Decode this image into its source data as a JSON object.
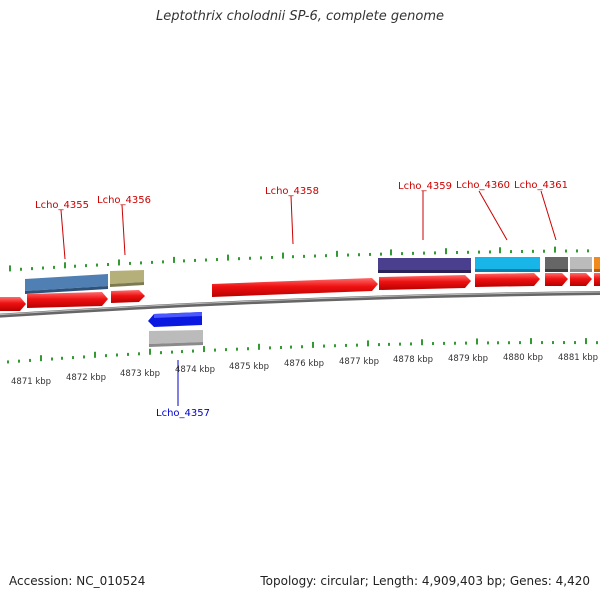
{
  "title": "Leptothrix cholodnii SP-6, complete genome",
  "footer": {
    "accession": "Accession: NC_010524",
    "summary": "Topology: circular; Length: 4,909,403 bp; Genes: 4,420"
  },
  "colors": {
    "cds": "#ee1111",
    "backbone": "#888888",
    "tick": "#339933",
    "label_plus": "#cc0000",
    "label_minus": "#0000cc",
    "feature_colors": [
      "#4f7fb3",
      "#b5b07a",
      "#4a3f8f",
      "#18b6e8",
      "#666666",
      "#bbbbbb",
      "#f08a1c",
      "#0a18e0"
    ]
  },
  "kbp_ticks": [
    "4871 kbp",
    "4872 kbp",
    "4873 kbp",
    "4874 kbp",
    "4875 kbp",
    "4876 kbp",
    "4877 kbp",
    "4878 kbp",
    "4879 kbp",
    "4880 kbp",
    "4881 kbp"
  ],
  "gene_labels": [
    {
      "id": "lcho_4355",
      "text": "Lcho_4355",
      "strand": "plus"
    },
    {
      "id": "lcho_4356",
      "text": "Lcho_4356",
      "strand": "plus"
    },
    {
      "id": "lcho_4357",
      "text": "Lcho_4357",
      "strand": "minus"
    },
    {
      "id": "lcho_4358",
      "text": "Lcho_4358",
      "strand": "plus"
    },
    {
      "id": "lcho_4359",
      "text": "Lcho_4359",
      "strand": "plus"
    },
    {
      "id": "lcho_4360",
      "text": "Lcho_4360",
      "strand": "plus"
    },
    {
      "id": "lcho_4361",
      "text": "Lcho_4361",
      "strand": "plus"
    }
  ]
}
